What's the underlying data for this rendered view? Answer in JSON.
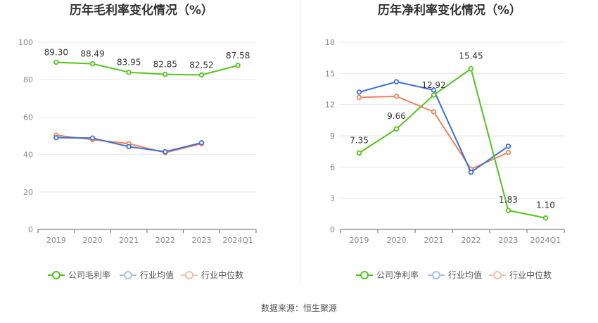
{
  "source_text": "数据来源：恒生聚源",
  "chart_data": [
    {
      "type": "line",
      "title": "历年毛利率变化情况（%）",
      "categories": [
        "2019",
        "2020",
        "2021",
        "2022",
        "2023",
        "2024Q1"
      ],
      "ylim": [
        0,
        100
      ],
      "yticks": [
        "0",
        "20",
        "40",
        "60",
        "80",
        "100"
      ],
      "grid": true,
      "legend_position": "bottom",
      "series": [
        {
          "name": "公司毛利率",
          "color": "#52c41a",
          "values": [
            89.3,
            88.49,
            83.95,
            82.85,
            82.52,
            87.58
          ],
          "labels": [
            "89.30",
            "88.49",
            "83.95",
            "82.85",
            "82.52",
            "87.58"
          ]
        },
        {
          "name": "行业均值",
          "color": "#3a6fd8",
          "values": [
            49.0,
            48.8,
            44.2,
            41.5,
            46.3,
            null
          ]
        },
        {
          "name": "行业中位数",
          "color": "#f0825a",
          "values": [
            50.3,
            48.0,
            45.8,
            41.0,
            45.8,
            null
          ]
        }
      ]
    },
    {
      "type": "line",
      "title": "历年净利率变化情况（%）",
      "categories": [
        "2019",
        "2020",
        "2021",
        "2022",
        "2023",
        "2024Q1"
      ],
      "ylim": [
        0,
        18
      ],
      "yticks": [
        "0",
        "3",
        "6",
        "9",
        "12",
        "15",
        "18"
      ],
      "grid": true,
      "legend_position": "bottom",
      "series": [
        {
          "name": "公司净利率",
          "color": "#52c41a",
          "values": [
            7.35,
            9.66,
            12.92,
            15.45,
            1.83,
            1.1
          ],
          "labels": [
            "7.35",
            "9.66",
            "12.92",
            "15.45",
            "1.83",
            "1.10"
          ]
        },
        {
          "name": "行业均值",
          "color": "#3a6fd8",
          "values": [
            13.2,
            14.2,
            13.4,
            5.5,
            8.0,
            null
          ]
        },
        {
          "name": "行业中位数",
          "color": "#f0825a",
          "values": [
            12.7,
            12.8,
            11.3,
            5.8,
            7.4,
            null
          ]
        }
      ]
    }
  ]
}
